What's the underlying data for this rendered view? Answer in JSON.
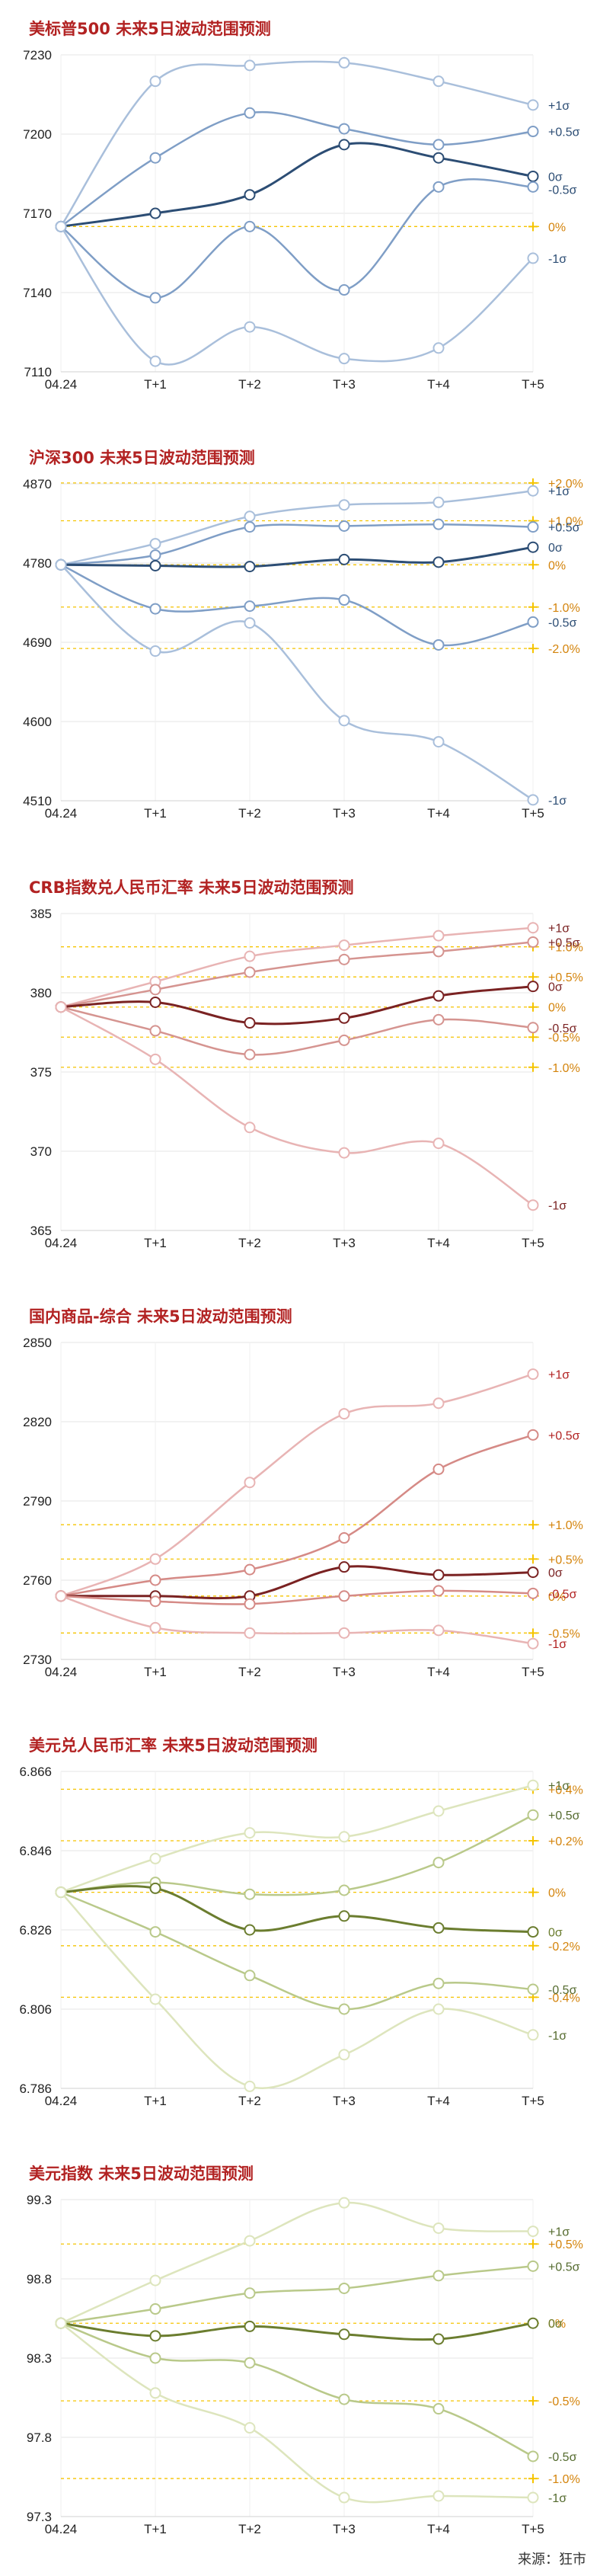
{
  "source": "来源：狂市",
  "x_labels": [
    "04.24",
    "T+1",
    "T+2",
    "T+3",
    "T+4",
    "T+5"
  ],
  "chart_data": [
    {
      "type": "line",
      "title": "美标普500 未来5日波动范围预测",
      "ylim": [
        7110,
        7230
      ],
      "yticks": [
        7110,
        7140,
        7170,
        7200,
        7230
      ],
      "grid": true,
      "colors": {
        "band": "#a9bfdb",
        "mid": "#7f9ec6",
        "center": "#2c4d74",
        "pct": "#f5c400",
        "pct_text": "#d4840c",
        "sigma_text": "#2c4d74"
      },
      "series": [
        {
          "name": "+1σ",
          "role": "band",
          "values": [
            7165,
            7220,
            7226,
            7227,
            7220,
            7211
          ]
        },
        {
          "name": "+0.5σ",
          "role": "mid",
          "values": [
            7165,
            7191,
            7208,
            7202,
            7196,
            7201
          ]
        },
        {
          "name": "0σ",
          "role": "center",
          "values": [
            7165,
            7170,
            7177,
            7196,
            7191,
            7184
          ]
        },
        {
          "name": "-0.5σ",
          "role": "mid",
          "values": [
            7165,
            7138,
            7165,
            7141,
            7180,
            7180
          ]
        },
        {
          "name": "-1σ",
          "role": "band",
          "values": [
            7165,
            7114,
            7127,
            7115,
            7119,
            7153
          ]
        }
      ],
      "pct_lines": [
        {
          "label": "0%",
          "value": 7165
        }
      ]
    },
    {
      "type": "line",
      "title": "沪深300 未来5日波动范围预测",
      "ylim": [
        4510,
        4870
      ],
      "yticks": [
        4510,
        4600,
        4690,
        4780,
        4870
      ],
      "grid": true,
      "colors": {
        "band": "#a9bfdb",
        "mid": "#7f9ec6",
        "center": "#2c4d74",
        "pct": "#f5c400",
        "pct_text": "#d4840c",
        "sigma_text": "#2c4d74"
      },
      "series": [
        {
          "name": "+1σ",
          "role": "band",
          "values": [
            4778,
            4802,
            4833,
            4846,
            4849,
            4862
          ]
        },
        {
          "name": "+0.5σ",
          "role": "mid",
          "values": [
            4778,
            4789,
            4821,
            4822,
            4824,
            4821
          ]
        },
        {
          "name": "0σ",
          "role": "center",
          "values": [
            4778,
            4777,
            4776,
            4784,
            4781,
            4798
          ]
        },
        {
          "name": "-0.5σ",
          "role": "mid",
          "values": [
            4778,
            4728,
            4731,
            4738,
            4687,
            4713
          ]
        },
        {
          "name": "-1σ",
          "role": "band",
          "values": [
            4778,
            4680,
            4712,
            4601,
            4577,
            4511
          ]
        }
      ],
      "pct_lines": [
        {
          "label": "+2.0%",
          "value": 4871
        },
        {
          "label": "+1.0%",
          "value": 4828
        },
        {
          "label": "0%",
          "value": 4778
        },
        {
          "label": "-1.0%",
          "value": 4730
        },
        {
          "label": "-2.0%",
          "value": 4683
        }
      ]
    },
    {
      "type": "line",
      "title": "CRB指数兑人民币汇率 未来5日波动范围预测",
      "ylim": [
        365,
        385
      ],
      "yticks": [
        365,
        370,
        375,
        380,
        385
      ],
      "grid": true,
      "colors": {
        "band": "#e8b4b4",
        "mid": "#d59490",
        "center": "#7a2222",
        "pct": "#f5c400",
        "pct_text": "#d4840c",
        "sigma_text": "#7a2222"
      },
      "series": [
        {
          "name": "+1σ",
          "role": "band",
          "values": [
            379.1,
            380.7,
            382.3,
            383.0,
            383.6,
            384.1
          ]
        },
        {
          "name": "+0.5σ",
          "role": "mid",
          "values": [
            379.1,
            380.2,
            381.3,
            382.1,
            382.6,
            383.2
          ]
        },
        {
          "name": "0σ",
          "role": "center",
          "values": [
            379.1,
            379.4,
            378.1,
            378.4,
            379.8,
            380.4
          ]
        },
        {
          "name": "-0.5σ",
          "role": "mid",
          "values": [
            379.1,
            377.6,
            376.1,
            377.0,
            378.3,
            377.8
          ]
        },
        {
          "name": "-1σ",
          "role": "band",
          "values": [
            379.1,
            375.8,
            371.5,
            369.9,
            370.5,
            366.6
          ]
        }
      ],
      "pct_lines": [
        {
          "label": "+1.0%",
          "value": 382.9
        },
        {
          "label": "+0.5%",
          "value": 381.0
        },
        {
          "label": "0%",
          "value": 379.1
        },
        {
          "label": "-0.5%",
          "value": 377.2
        },
        {
          "label": "-1.0%",
          "value": 375.3
        }
      ]
    },
    {
      "type": "line",
      "title": "国内商品-综合 未来5日波动范围预测",
      "ylim": [
        2730,
        2850
      ],
      "yticks": [
        2730,
        2760,
        2790,
        2820,
        2850
      ],
      "grid": true,
      "colors": {
        "band": "#e8b4b4",
        "mid": "#d58a86",
        "center": "#7a2222",
        "pct": "#f5c400",
        "pct_text": "#d4840c",
        "sigma_text": "#b22222"
      },
      "series": [
        {
          "name": "+1σ",
          "role": "band",
          "values": [
            2754,
            2768,
            2797,
            2823,
            2827,
            2838
          ]
        },
        {
          "name": "+0.5σ",
          "role": "mid",
          "values": [
            2754,
            2760,
            2764,
            2776,
            2802,
            2815
          ]
        },
        {
          "name": "0σ",
          "role": "center",
          "values": [
            2754,
            2754,
            2754,
            2765,
            2762,
            2763
          ]
        },
        {
          "name": "-0.5σ",
          "role": "mid",
          "values": [
            2754,
            2752,
            2751,
            2754,
            2756,
            2755
          ]
        },
        {
          "name": "-1σ",
          "role": "band",
          "values": [
            2754,
            2742,
            2740,
            2740,
            2741,
            2736
          ]
        }
      ],
      "pct_lines": [
        {
          "label": "+1.0%",
          "value": 2781
        },
        {
          "label": "+0.5%",
          "value": 2768
        },
        {
          "label": "0%",
          "value": 2754
        },
        {
          "label": "-0.5%",
          "value": 2740
        }
      ]
    },
    {
      "type": "line",
      "title": "美元兑人民币汇率 未来5日波动范围预测",
      "ylim": [
        6.786,
        6.866
      ],
      "yticks": [
        6.786,
        6.806,
        6.826,
        6.846,
        6.866
      ],
      "grid": true,
      "colors": {
        "band": "#dde5bd",
        "mid": "#b9c98a",
        "center": "#6b7d2f",
        "pct": "#f5c400",
        "pct_text": "#d4840c",
        "sigma_text": "#556b2f"
      },
      "series": [
        {
          "name": "+1σ",
          "role": "band",
          "values": [
            6.8355,
            6.844,
            6.8505,
            6.8495,
            6.856,
            6.8625
          ]
        },
        {
          "name": "+0.5σ",
          "role": "mid",
          "values": [
            6.8355,
            6.838,
            6.835,
            6.836,
            6.843,
            6.855
          ]
        },
        {
          "name": "0σ",
          "role": "center",
          "values": [
            6.8355,
            6.8365,
            6.826,
            6.8295,
            6.8265,
            6.8255
          ]
        },
        {
          "name": "-0.5σ",
          "role": "mid",
          "values": [
            6.8355,
            6.8255,
            6.8145,
            6.806,
            6.8125,
            6.811
          ]
        },
        {
          "name": "-1σ",
          "role": "band",
          "values": [
            6.8355,
            6.8085,
            6.7865,
            6.7945,
            6.806,
            6.7995
          ]
        }
      ],
      "pct_lines": [
        {
          "label": "+0.4%",
          "value": 6.8615
        },
        {
          "label": "+0.2%",
          "value": 6.8485
        },
        {
          "label": "0%",
          "value": 6.8355
        },
        {
          "label": "-0.2%",
          "value": 6.822
        },
        {
          "label": "-0.4%",
          "value": 6.809
        }
      ]
    },
    {
      "type": "line",
      "title": "美元指数 未来5日波动范围预测",
      "ylim": [
        97.3,
        99.3
      ],
      "yticks": [
        97.3,
        97.8,
        98.3,
        98.8,
        99.3
      ],
      "grid": true,
      "colors": {
        "band": "#dde5bd",
        "mid": "#b9c98a",
        "center": "#6b7d2f",
        "pct": "#f5c400",
        "pct_text": "#d4840c",
        "sigma_text": "#556b2f"
      },
      "series": [
        {
          "name": "+1σ",
          "role": "band",
          "values": [
            98.52,
            98.79,
            99.04,
            99.28,
            99.12,
            99.1
          ]
        },
        {
          "name": "+0.5σ",
          "role": "mid",
          "values": [
            98.52,
            98.61,
            98.71,
            98.74,
            98.82,
            98.88
          ]
        },
        {
          "name": "0σ",
          "role": "center",
          "values": [
            98.52,
            98.44,
            98.5,
            98.45,
            98.42,
            98.52
          ]
        },
        {
          "name": "-0.5σ",
          "role": "mid",
          "values": [
            98.52,
            98.3,
            98.27,
            98.04,
            97.98,
            97.68
          ]
        },
        {
          "name": "-1σ",
          "role": "band",
          "values": [
            98.52,
            98.08,
            97.86,
            97.42,
            97.43,
            97.42
          ]
        }
      ],
      "pct_lines": [
        {
          "label": "+0.5%",
          "value": 99.02
        },
        {
          "label": "0%",
          "value": 98.52
        },
        {
          "label": "-0.5%",
          "value": 98.03
        },
        {
          "label": "-1.0%",
          "value": 97.54
        }
      ]
    }
  ]
}
